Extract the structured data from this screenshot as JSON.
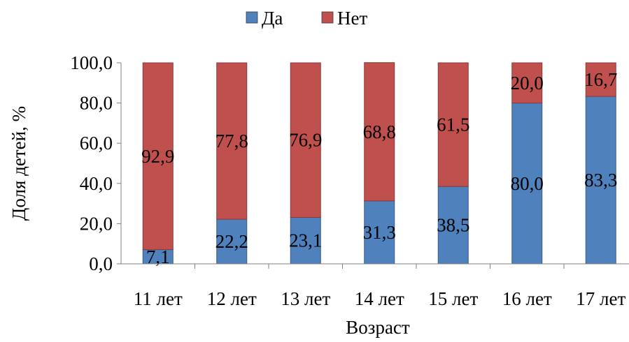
{
  "chart_data": {
    "type": "bar",
    "stacked": true,
    "xlabel": "Возраст",
    "ylabel": "Доля детей, %",
    "ylim": [
      0,
      100
    ],
    "yticks": [
      0,
      20,
      40,
      60,
      80,
      100
    ],
    "ytick_labels": [
      "0,0",
      "20,0",
      "40,0",
      "60,0",
      "80,0",
      "100,0"
    ],
    "categories": [
      "11 лет",
      "12 лет",
      "13 лет",
      "14 лет",
      "15 лет",
      "16 лет",
      "17 лет"
    ],
    "series": [
      {
        "name": "Да",
        "color": "#4f81bd",
        "values": [
          7.1,
          22.2,
          23.1,
          31.3,
          38.5,
          80.0,
          83.3
        ],
        "labels": [
          "7,1",
          "22,2",
          "23,1",
          "31,3",
          "38,5",
          "80,0",
          "83,3"
        ]
      },
      {
        "name": "Нет",
        "color": "#c0504d",
        "values": [
          92.9,
          77.8,
          76.9,
          68.8,
          61.5,
          20.0,
          16.7
        ],
        "labels": [
          "92,9",
          "77,8",
          "76,9",
          "68,8",
          "61,5",
          "20,0",
          "16,7"
        ]
      }
    ],
    "legend_position": "top",
    "grid": false
  }
}
